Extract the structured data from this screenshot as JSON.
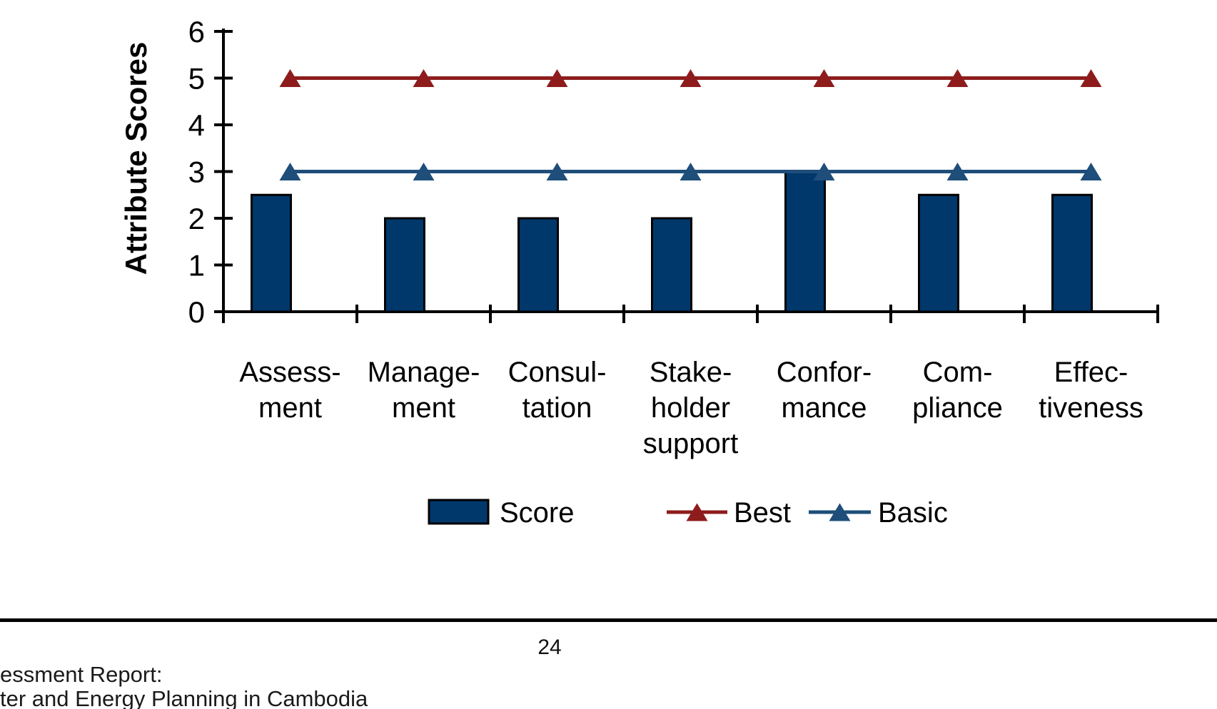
{
  "page": {
    "number": "24",
    "footer_line1": "essment Report:",
    "footer_line2": "ter and Energy Planning in Cambodia"
  },
  "chart_data": {
    "type": "bar",
    "title": "",
    "xlabel": "",
    "ylabel": "Attribute Scores",
    "ylim": [
      0,
      6
    ],
    "yticks": [
      0,
      1,
      2,
      3,
      4,
      5,
      6
    ],
    "grid": false,
    "legend_position": "bottom",
    "categories": [
      {
        "name": "Assessment",
        "lines": [
          "Assess-",
          "ment"
        ]
      },
      {
        "name": "Management",
        "lines": [
          "Manage-",
          "ment"
        ]
      },
      {
        "name": "Consultation",
        "lines": [
          "Consul-",
          "tation"
        ]
      },
      {
        "name": "Stakeholder support",
        "lines": [
          "Stake-",
          "holder",
          "support"
        ]
      },
      {
        "name": "Conformance",
        "lines": [
          "Confor-",
          "mance"
        ]
      },
      {
        "name": "Compliance",
        "lines": [
          "Com-",
          "pliance"
        ]
      },
      {
        "name": "Effectiveness",
        "lines": [
          "Effec-",
          "tiveness"
        ]
      }
    ],
    "series": [
      {
        "name": "Score",
        "type": "bar",
        "color": "#00386B",
        "border": "#000000",
        "values": [
          2.5,
          2,
          2,
          2,
          3,
          2.5,
          2.5
        ]
      },
      {
        "name": "Best",
        "type": "line",
        "color": "#8E1C1C",
        "marker": "triangle-up",
        "values": [
          5,
          5,
          5,
          5,
          5,
          5,
          5
        ]
      },
      {
        "name": "Basic",
        "type": "line",
        "color": "#1E4E79",
        "marker": "triangle-up",
        "values": [
          3,
          3,
          3,
          3,
          3,
          3,
          3
        ]
      }
    ],
    "colors": {
      "axis": "#000000",
      "text": "#000000"
    }
  }
}
